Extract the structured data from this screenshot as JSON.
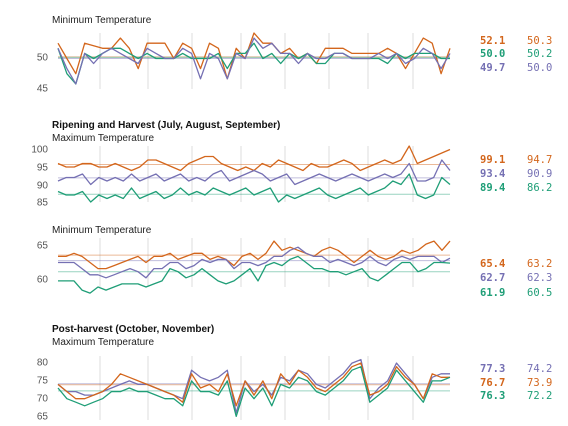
{
  "colors": {
    "orange": "#d3661c",
    "green": "#1f9e77",
    "purple": "#7570b3",
    "grid": "#dddddd",
    "ref": "#bbbbbb"
  },
  "chart_data": [
    {
      "type": "line",
      "section_title": "",
      "title": "Minimum Temperature",
      "ylim": [
        44,
        55
      ],
      "yticks": [
        "45",
        "50"
      ],
      "series": [
        {
          "color": "orange",
          "values": [
            53,
            50,
            47,
            53,
            52.5,
            52,
            52,
            54,
            52,
            48,
            53,
            53,
            53,
            50,
            53,
            52,
            48,
            53,
            52,
            46,
            52,
            50,
            55,
            53,
            53,
            51,
            52,
            50,
            51,
            49,
            52,
            52,
            52,
            51,
            51,
            51,
            51,
            52,
            51,
            48,
            51,
            54,
            53,
            47,
            52
          ],
          "value_label": "52.1",
          "ref_label": "50.3"
        },
        {
          "color": "green",
          "values": [
            52,
            47,
            45,
            51,
            50,
            51,
            52,
            52,
            51,
            50,
            51,
            50,
            50,
            50,
            51,
            50,
            50,
            50,
            51,
            48,
            51,
            51,
            53,
            50,
            51,
            49,
            51,
            50,
            51,
            49,
            49,
            51,
            51,
            50,
            50,
            50,
            50,
            49,
            51,
            50,
            51,
            51,
            51,
            50,
            50
          ],
          "value_label": "50.0",
          "ref_label": "50.2"
        },
        {
          "color": "purple",
          "values": [
            52,
            48,
            45,
            51,
            49,
            51,
            52,
            51,
            50,
            49,
            52,
            51,
            50,
            50,
            52,
            51,
            46,
            51,
            50,
            46,
            51,
            50,
            54,
            52,
            53,
            51,
            51,
            49,
            51,
            50,
            50,
            51,
            51,
            50,
            50,
            50,
            51,
            50,
            51,
            49,
            50,
            52,
            51,
            48,
            51
          ],
          "value_label": "49.7",
          "ref_label": "50.0"
        }
      ]
    },
    {
      "type": "line",
      "section_title": "Ripening and Harvest (July, August, September)",
      "title": "Maximum Temperature",
      "ylim": [
        84,
        100
      ],
      "yticks": [
        "100",
        "95",
        "90",
        "85"
      ],
      "series": [
        {
          "color": "orange",
          "values": [
            95,
            94,
            94,
            95,
            95,
            94,
            94,
            95,
            94,
            93,
            94,
            96,
            96,
            95,
            94,
            93,
            95,
            96,
            97,
            97,
            95,
            94,
            93,
            94,
            93,
            95,
            94,
            96,
            95,
            94,
            93,
            95,
            94,
            94,
            95,
            96,
            95,
            93,
            94,
            95,
            96,
            95,
            96,
            100,
            95,
            96,
            97,
            98,
            99
          ],
          "value_label": "99.1",
          "ref_label": "94.7"
        },
        {
          "color": "purple",
          "values": [
            90,
            91,
            91,
            92,
            89,
            91,
            90,
            91,
            90,
            92,
            90,
            91,
            92,
            90,
            91,
            92,
            90,
            91,
            90,
            92,
            93,
            90,
            91,
            92,
            93,
            92,
            90,
            91,
            92,
            89,
            90,
            91,
            92,
            91,
            90,
            91,
            92,
            91,
            90,
            91,
            92,
            91,
            92,
            95,
            90,
            90,
            91,
            96,
            93
          ],
          "value_label": "93.4",
          "ref_label": "90.9"
        },
        {
          "color": "green",
          "values": [
            87,
            86,
            86,
            87,
            84,
            86,
            85,
            86,
            85,
            88,
            85,
            86,
            87,
            85,
            86,
            88,
            86,
            87,
            86,
            88,
            87,
            86,
            87,
            88,
            86,
            87,
            88,
            84,
            86,
            85,
            86,
            87,
            88,
            86,
            85,
            86,
            87,
            88,
            86,
            87,
            88,
            90,
            89,
            92,
            86,
            85,
            86,
            91,
            89
          ],
          "value_label": "89.4",
          "ref_label": "86.2"
        }
      ]
    },
    {
      "type": "line",
      "section_title": "",
      "title": "Minimum Temperature",
      "ylim": [
        58,
        66
      ],
      "yticks": [
        "65",
        "60"
      ],
      "series": [
        {
          "color": "orange",
          "values": [
            63,
            63,
            63.5,
            63,
            62,
            61,
            61,
            61.5,
            62,
            62.5,
            63,
            62,
            63,
            63,
            63.5,
            62.5,
            63,
            63.5,
            63.5,
            62.5,
            63,
            62.5,
            61.5,
            63,
            63.5,
            62.5,
            63.5,
            65.5,
            64,
            64.5,
            64,
            63.5,
            63,
            64,
            64.5,
            64,
            63,
            62,
            63,
            64,
            63,
            62.5,
            63,
            64,
            63.5,
            64,
            65,
            65.5,
            64,
            65.5
          ],
          "value_label": "65.4",
          "ref_label": "63.2"
        },
        {
          "color": "purple",
          "values": [
            62,
            62,
            62,
            61,
            60,
            60,
            59.5,
            60,
            60.5,
            61,
            60.5,
            59.5,
            61,
            61,
            62,
            62,
            61,
            61.5,
            62.5,
            62,
            62.5,
            62.5,
            61,
            62,
            62,
            61.5,
            62,
            63,
            63,
            64,
            64.5,
            63.5,
            63,
            63,
            62,
            62.5,
            62,
            61.5,
            62,
            63,
            62,
            61.5,
            62.5,
            63,
            62.5,
            63,
            63,
            63,
            62,
            62.7
          ],
          "value_label": "62.7",
          "ref_label": "62.3"
        },
        {
          "color": "green",
          "values": [
            59,
            59,
            59,
            57.5,
            57,
            58,
            57.5,
            58,
            58.5,
            58.5,
            58.5,
            58,
            58.5,
            59,
            61,
            60.5,
            59.5,
            60,
            61,
            60,
            59,
            58.5,
            59,
            60,
            61,
            59,
            61.5,
            62,
            61.5,
            62.5,
            63,
            62,
            61,
            61,
            60.5,
            60.5,
            60,
            60.5,
            61,
            59.5,
            59,
            60,
            61,
            62,
            62,
            60.5,
            61,
            62,
            62,
            61.9
          ],
          "value_label": "61.9",
          "ref_label": "60.5"
        }
      ]
    },
    {
      "type": "line",
      "section_title": "Post-harvest (October, November)",
      "title": "Maximum Temperature",
      "ylim": [
        64,
        82
      ],
      "yticks": [
        "80",
        "75",
        "70",
        "65"
      ],
      "series": [
        {
          "color": "purple",
          "values": [
            74,
            72,
            72,
            71,
            71,
            72,
            73,
            74,
            75,
            74,
            74,
            73,
            72,
            71,
            70,
            78,
            76,
            75,
            76,
            78,
            66,
            75,
            72,
            74,
            71,
            76,
            75,
            78,
            77,
            74,
            73,
            75,
            77,
            80,
            81,
            70,
            73,
            75,
            80,
            77,
            74,
            70,
            76,
            77,
            77
          ],
          "value_label": "77.3",
          "ref_label": "74.2"
        },
        {
          "color": "orange",
          "values": [
            74,
            72,
            70,
            70,
            71,
            72,
            74,
            77,
            76,
            75,
            74,
            73,
            72,
            71,
            69,
            77,
            73,
            74,
            72,
            77,
            68,
            75,
            71,
            75,
            70,
            77,
            74,
            78,
            76,
            73,
            72,
            74,
            76,
            79,
            80,
            71,
            72,
            74,
            79,
            76,
            74,
            70,
            77,
            76,
            76
          ],
          "value_label": "76.7",
          "ref_label": "73.9"
        },
        {
          "color": "green",
          "values": [
            73,
            70,
            69,
            68,
            69,
            70,
            72,
            72,
            73,
            72,
            72,
            71,
            70,
            70,
            68,
            75,
            72,
            72,
            71,
            75,
            65,
            73,
            70,
            73,
            68,
            74,
            73,
            76,
            75,
            72,
            71,
            73,
            75,
            78,
            79,
            69,
            71,
            73,
            78,
            75,
            72,
            69,
            75,
            75,
            76
          ],
          "value_label": "76.3",
          "ref_label": "72.2"
        }
      ]
    }
  ]
}
